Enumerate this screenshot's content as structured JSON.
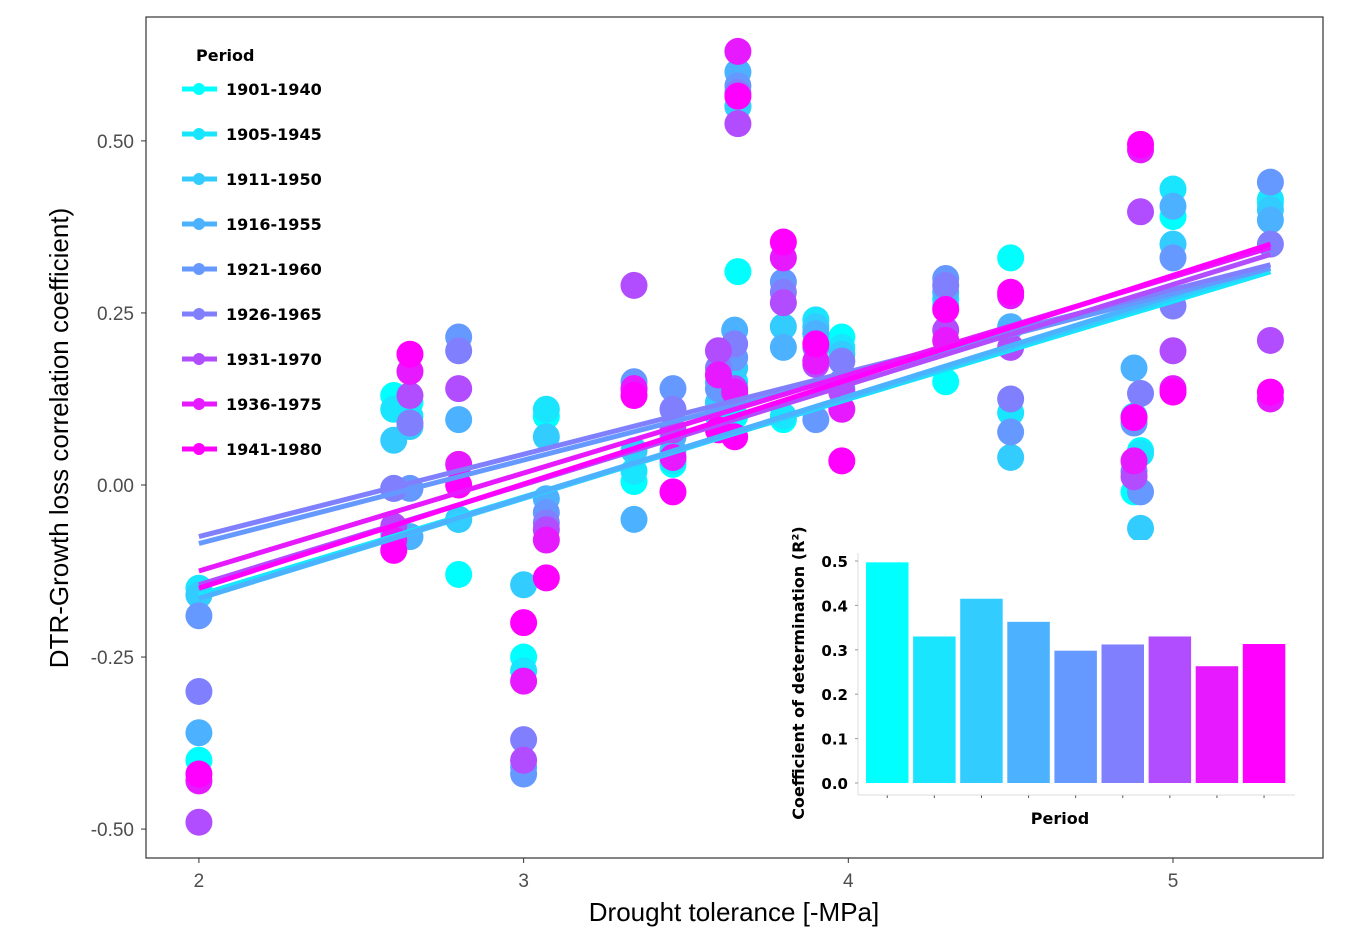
{
  "chart_data": [
    {
      "type": "scatter",
      "xlabel": "Drought tolerance [-MPa]",
      "ylabel": "DTR-Growth loss correlation coefficient)",
      "xlim": [
        1.837,
        5.462
      ],
      "ylim": [
        -0.542,
        0.68
      ],
      "xticks": [
        "2",
        "3",
        "4",
        "5"
      ],
      "yticks": [
        "0.50",
        "0.25",
        "0.00",
        "-0.25",
        "-0.50"
      ],
      "grid": false,
      "legend": {
        "title": "Period",
        "placement": "top-left"
      },
      "x": [
        2,
        2.6,
        2.65,
        2.8,
        3,
        3.07,
        3.34,
        3.46,
        3.6,
        3.65,
        3.66,
        3.8,
        3.9,
        3.98,
        4.3,
        4.5,
        4.88,
        4.9,
        5,
        5.3
      ],
      "series": [
        {
          "name": "1901-1940",
          "color": "#00FFFF",
          "y": [
            -0.4,
            0.13,
            0.12,
            -0.13,
            -0.25,
            0.1,
            0.005,
            0.03,
            0.11,
            0.1,
            0.31,
            0.095,
            0.22,
            0.215,
            0.15,
            0.33,
            -0.01,
            0.05,
            0.39,
            0.41
          ],
          "fit": {
            "x": [
              2,
              5.3
            ],
            "y": [
              -0.16,
              0.31
            ]
          }
        },
        {
          "name": "1905-1945",
          "color": "#19E5FF",
          "y": [
            -0.15,
            0.11,
            0.1,
            -0.05,
            -0.27,
            0.11,
            0.02,
            0.035,
            0.1,
            0.15,
            0.55,
            0.1,
            0.24,
            0.2,
            0.27,
            0.105,
            0.1,
            0.046,
            0.43,
            0.415
          ],
          "fit": {
            "x": [
              2,
              5.3
            ],
            "y": [
              -0.16,
              0.31
            ]
          }
        },
        {
          "name": "1911-1950",
          "color": "#33CCFF",
          "y": [
            -0.16,
            0.065,
            0.085,
            -0.05,
            -0.145,
            0.07,
            0.05,
            0.05,
            0.12,
            0.17,
            0.55,
            0.23,
            0.23,
            0.19,
            0.26,
            0.04,
            0.1,
            -0.063,
            0.35,
            0.4
          ],
          "fit": {
            "x": [
              2,
              5.3
            ],
            "y": [
              -0.165,
              0.315
            ]
          }
        },
        {
          "name": "1916-1955",
          "color": "#4CB2FF",
          "y": [
            -0.36,
            -0.07,
            -0.075,
            0.095,
            -0.41,
            -0.02,
            -0.05,
            0.07,
            0.15,
            0.225,
            0.6,
            0.2,
            0.22,
            0.14,
            0.28,
            0.23,
            0.17,
            -0.115,
            0.405,
            0.385
          ],
          "fit": {
            "x": [
              2,
              5.3
            ],
            "y": [
              -0.165,
              0.32
            ]
          }
        },
        {
          "name": "1921-1960",
          "color": "#6699FF",
          "y": [
            -0.19,
            -0.005,
            -0.005,
            0.215,
            -0.42,
            -0.04,
            0.15,
            0.14,
            0.14,
            0.185,
            0.58,
            0.295,
            0.095,
            0.15,
            0.3,
            0.077,
            0.09,
            -0.01,
            0.33,
            0.44
          ],
          "fit": {
            "x": [
              2,
              5.3
            ],
            "y": [
              -0.085,
              0.315
            ]
          }
        },
        {
          "name": "1926-1965",
          "color": "#8080FF",
          "y": [
            -0.3,
            -0.005,
            0.09,
            0.195,
            -0.37,
            -0.055,
            0.14,
            0.11,
            0.17,
            0.205,
            0.57,
            0.28,
            0.2,
            0.18,
            0.29,
            0.125,
            0.02,
            0.133,
            0.26,
            0.35
          ],
          "fit": {
            "x": [
              2,
              5.3
            ],
            "y": [
              -0.075,
              0.32
            ]
          }
        },
        {
          "name": "1931-1970",
          "color": "#B24CFF",
          "y": [
            -0.49,
            -0.06,
            0.13,
            0.14,
            -0.4,
            -0.065,
            0.29,
            0.08,
            0.195,
            0.14,
            0.525,
            0.265,
            0.175,
            0.135,
            0.225,
            0.2,
            0.012,
            0.397,
            0.195,
            0.21
          ],
          "fit": {
            "x": [
              2,
              5.3
            ],
            "y": [
              -0.145,
              0.335
            ]
          }
        },
        {
          "name": "1936-1975",
          "color": "#E619FF",
          "y": [
            -0.43,
            -0.08,
            0.165,
            0.03,
            -0.285,
            -0.08,
            0.14,
            0.04,
            0.16,
            0.135,
            0.63,
            0.33,
            0.18,
            0.11,
            0.21,
            0.275,
            0.035,
            0.487,
            0.14,
            0.125
          ],
          "fit": {
            "x": [
              2,
              5.3
            ],
            "y": [
              -0.125,
              0.345
            ]
          }
        },
        {
          "name": "1941-1980",
          "color": "#FF00FF",
          "y": [
            -0.42,
            -0.095,
            0.19,
            0.0,
            -0.2,
            -0.135,
            0.13,
            -0.01,
            0.08,
            0.07,
            0.565,
            0.353,
            0.205,
            0.035,
            0.255,
            0.28,
            0.098,
            0.495,
            0.135,
            0.135
          ],
          "fit": {
            "x": [
              2,
              5.3
            ],
            "y": [
              -0.15,
              0.35
            ]
          }
        }
      ]
    },
    {
      "type": "bar",
      "xlabel": "Period",
      "ylabel": "Coefficient of determination (R²)",
      "ylim": [
        0,
        0.52
      ],
      "yticks": [
        "0.0",
        "0.1",
        "0.2",
        "0.3",
        "0.4",
        "0.5"
      ],
      "categories": [
        "1901-1940",
        "1905-1945",
        "1911-1950",
        "1916-1955",
        "1921-1960",
        "1926-1965",
        "1931-1970",
        "1936-1975",
        "1941-1980"
      ],
      "colors": [
        "#00FFFF",
        "#19E5FF",
        "#33CCFF",
        "#4CB2FF",
        "#6699FF",
        "#8080FF",
        "#B24CFF",
        "#E619FF",
        "#FF00FF"
      ],
      "values": [
        0.497,
        0.33,
        0.415,
        0.363,
        0.298,
        0.312,
        0.33,
        0.263,
        0.313
      ]
    }
  ]
}
